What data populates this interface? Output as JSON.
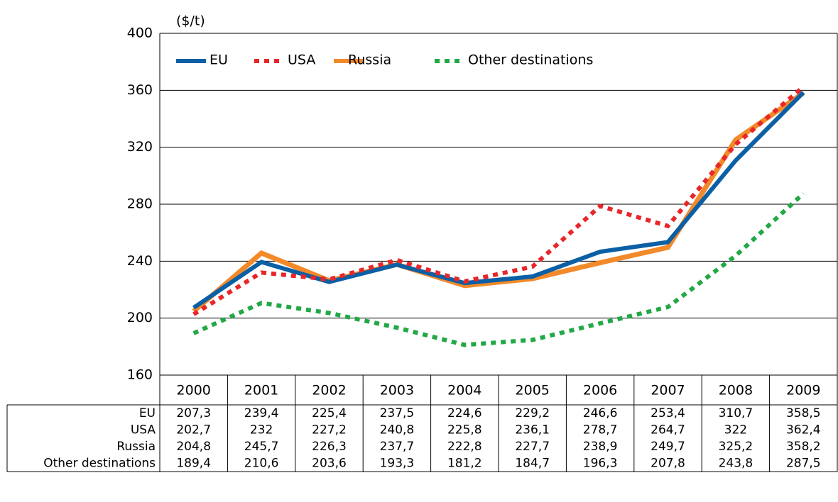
{
  "chart_data": {
    "type": "line",
    "y_label": "($/t)",
    "categories": [
      "2000",
      "2001",
      "2002",
      "2003",
      "2004",
      "2005",
      "2006",
      "2007",
      "2008",
      "2009"
    ],
    "series": [
      {
        "name": "EU",
        "color": "#0b5fa5",
        "style": "solid",
        "values": [
          207.3,
          239.4,
          225.4,
          237.5,
          224.6,
          229.2,
          246.6,
          253.4,
          310.7,
          358.5
        ],
        "value_labels": [
          "207,3",
          "239,4",
          "225,4",
          "237,5",
          "224,6",
          "229,2",
          "246,6",
          "253,4",
          "310,7",
          "358,5"
        ]
      },
      {
        "name": "USA",
        "color": "#e8262a",
        "style": "dotted",
        "values": [
          202.7,
          232,
          227.2,
          240.8,
          225.8,
          236.1,
          278.7,
          264.7,
          322,
          362.4
        ],
        "value_labels": [
          "202,7",
          "232",
          "227,2",
          "240,8",
          "225,8",
          "236,1",
          "278,7",
          "264,7",
          "322",
          "362,4"
        ]
      },
      {
        "name": "Russia",
        "color": "#f28a2a",
        "style": "solid",
        "values": [
          204.8,
          245.7,
          226.3,
          237.7,
          222.8,
          227.7,
          238.9,
          249.7,
          325.2,
          358.2
        ],
        "value_labels": [
          "204,8",
          "245,7",
          "226,3",
          "237,7",
          "222,8",
          "227,7",
          "238,9",
          "249,7",
          "325,2",
          "358,2"
        ]
      },
      {
        "name": "Other destinations",
        "color": "#22a846",
        "style": "dotted",
        "values": [
          189.4,
          210.6,
          203.6,
          193.3,
          181.2,
          184.7,
          196.3,
          207.8,
          243.8,
          287.5
        ],
        "value_labels": [
          "189,4",
          "210,6",
          "203,6",
          "193,3",
          "181,2",
          "184,7",
          "196,3",
          "207,8",
          "243,8",
          "287,5"
        ]
      }
    ],
    "ylim": [
      160,
      400
    ],
    "yticks": [
      160,
      200,
      240,
      280,
      320,
      360,
      400
    ],
    "grid": true
  }
}
